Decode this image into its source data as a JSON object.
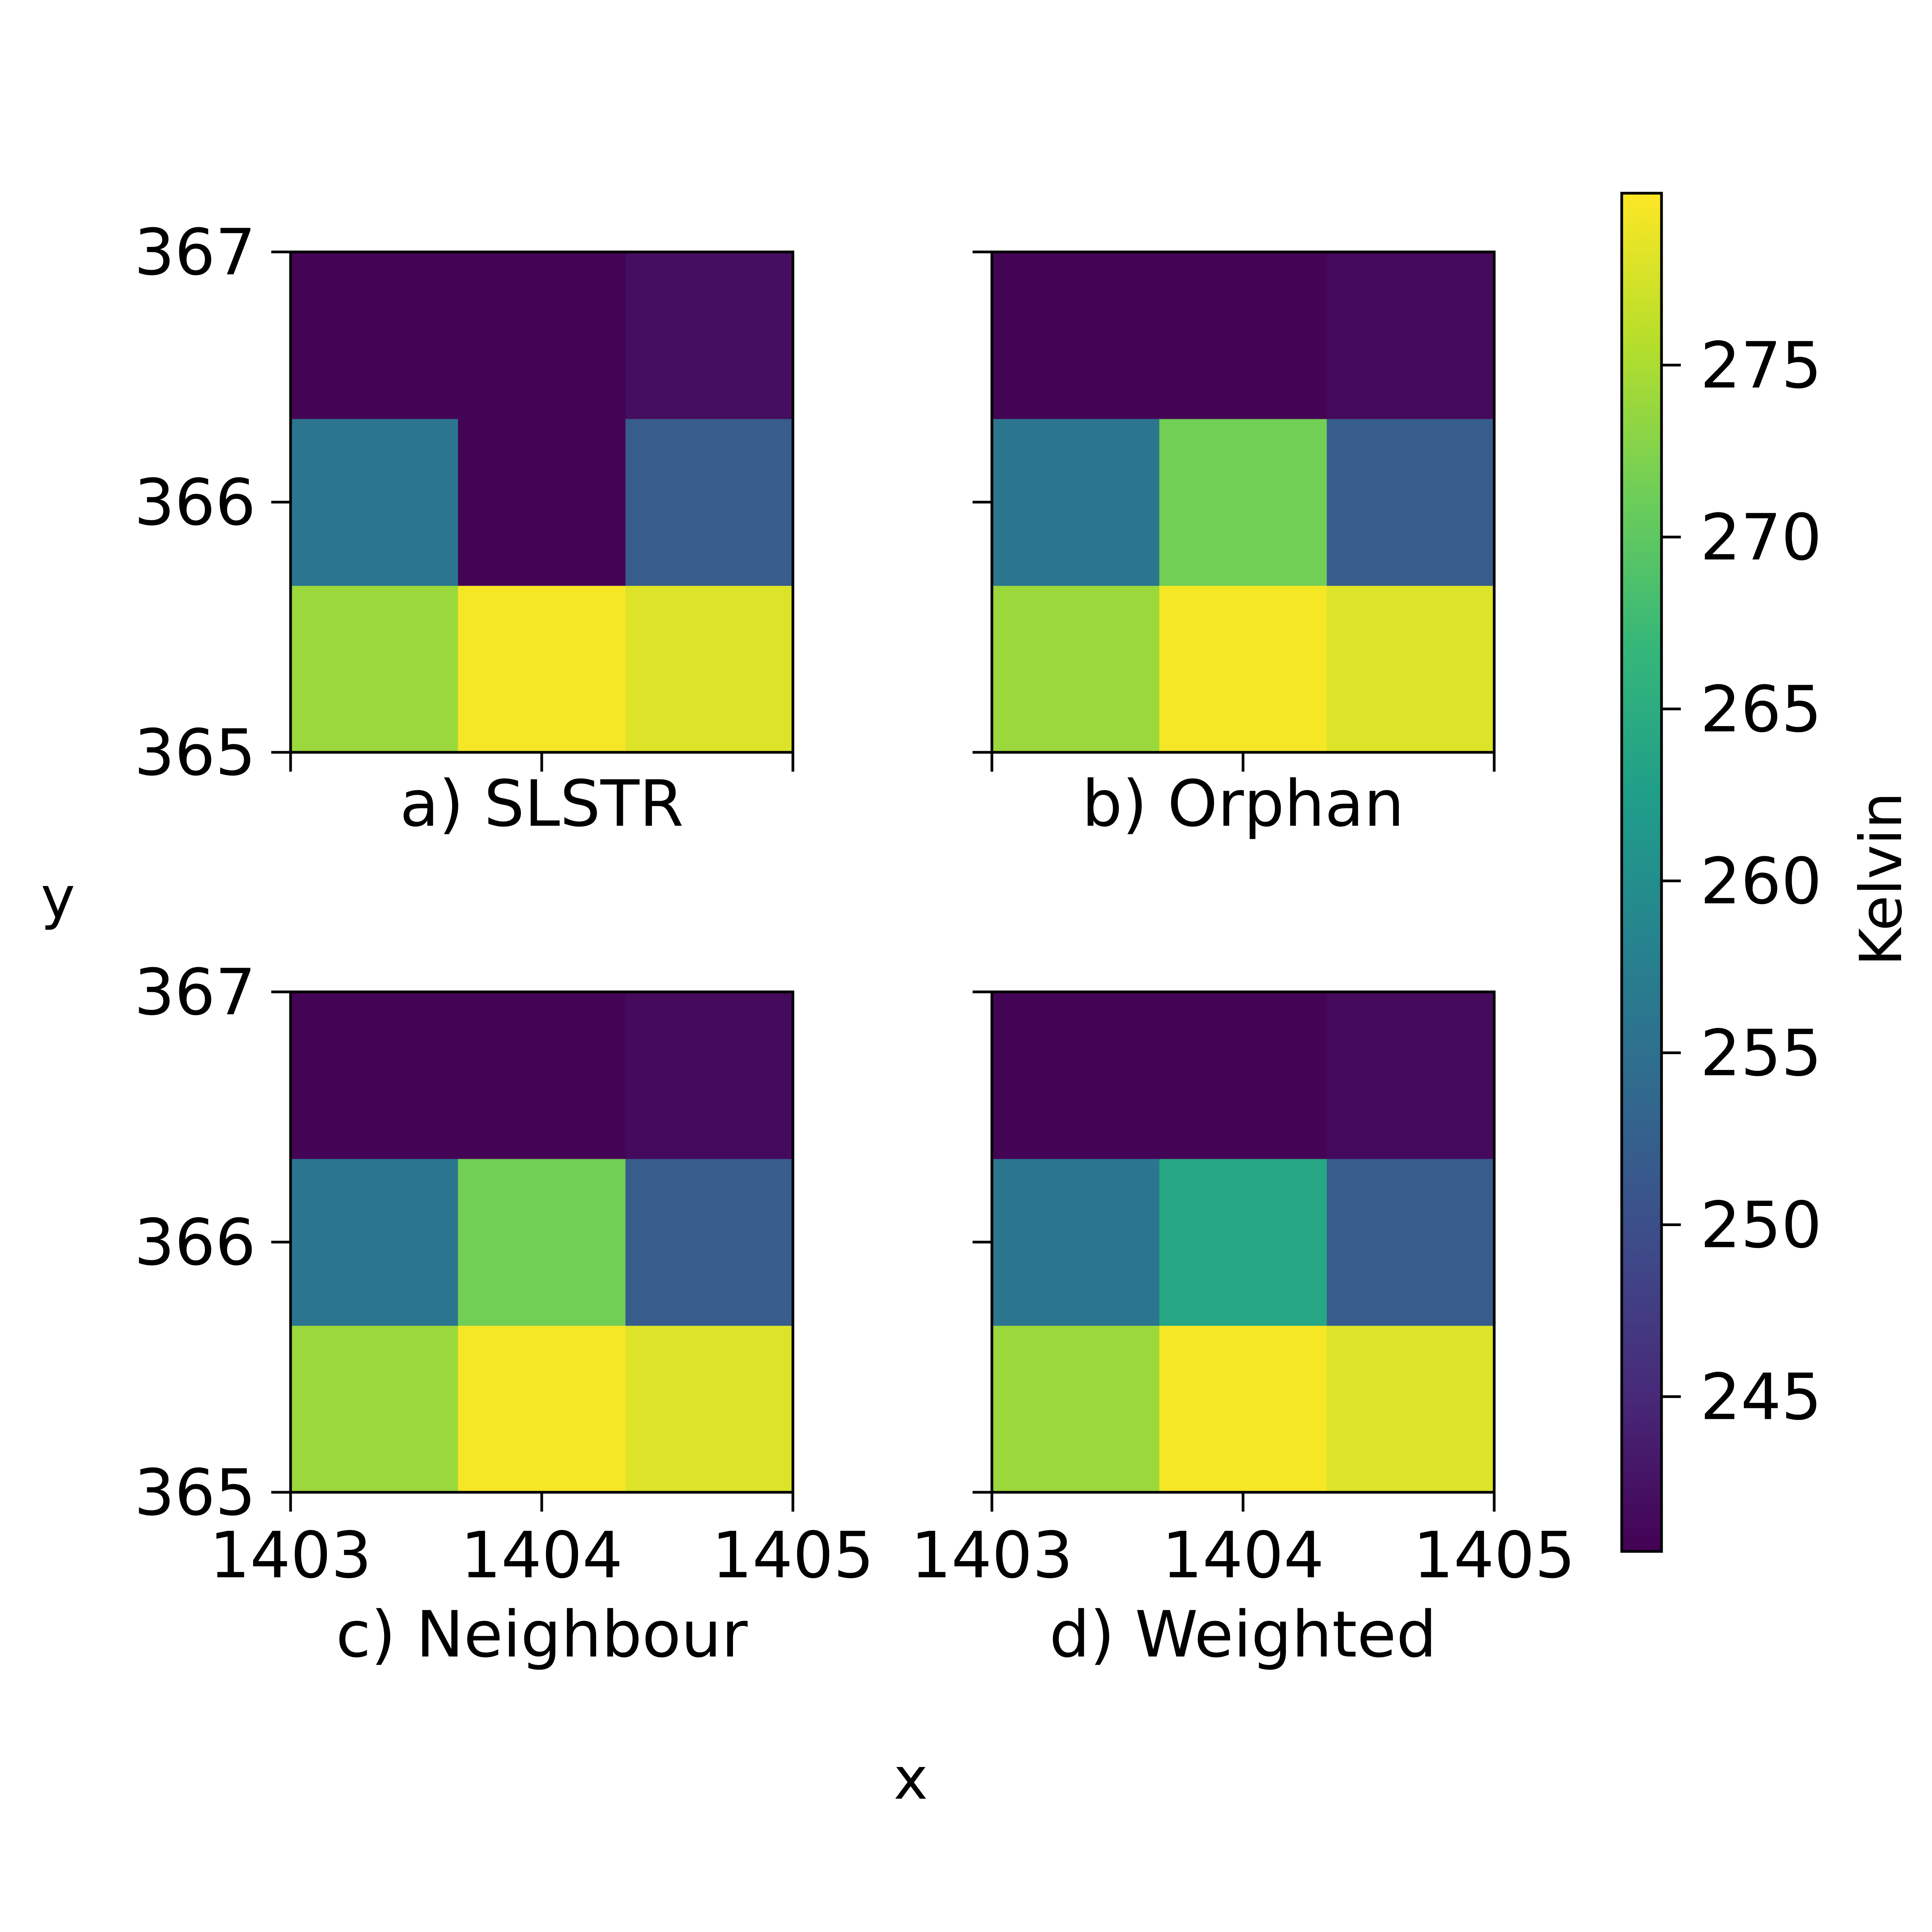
{
  "figure": {
    "xlabel": "x",
    "ylabel": "y"
  },
  "colorbar": {
    "label": "Kelvin",
    "min": 240.5,
    "max": 280.0,
    "ticks": [
      245,
      250,
      255,
      260,
      265,
      270,
      275
    ],
    "colormap": "viridis"
  },
  "chart_data": [
    {
      "type": "heatmap",
      "title": "a) SLSTR",
      "x": [
        1403,
        1404,
        1405
      ],
      "y": [
        365,
        366,
        367
      ],
      "xlim": [
        1403,
        1405
      ],
      "ylim": [
        365,
        367
      ],
      "x_ticks": [
        1403,
        1404,
        1405
      ],
      "y_ticks": [
        365,
        366,
        367
      ],
      "show_x_ticklabels": false,
      "show_y_ticklabels": true,
      "values": [
        [
          274.0,
          279.5,
          278.0
        ],
        [
          256.0,
          240.8,
          252.0
        ],
        [
          240.8,
          240.8,
          242.0
        ]
      ]
    },
    {
      "type": "heatmap",
      "title": "b) Orphan",
      "x": [
        1403,
        1404,
        1405
      ],
      "y": [
        365,
        366,
        367
      ],
      "xlim": [
        1403,
        1405
      ],
      "ylim": [
        365,
        367
      ],
      "x_ticks": [
        1403,
        1404,
        1405
      ],
      "y_ticks": [
        365,
        366,
        367
      ],
      "show_x_ticklabels": false,
      "show_y_ticklabels": false,
      "values": [
        [
          274.0,
          279.5,
          278.0
        ],
        [
          256.0,
          271.5,
          252.0
        ],
        [
          240.8,
          240.8,
          241.5
        ]
      ]
    },
    {
      "type": "heatmap",
      "title": "c) Neighbour",
      "x": [
        1403,
        1404,
        1405
      ],
      "y": [
        365,
        366,
        367
      ],
      "xlim": [
        1403,
        1405
      ],
      "ylim": [
        365,
        367
      ],
      "x_ticks": [
        1403,
        1404,
        1405
      ],
      "y_ticks": [
        365,
        366,
        367
      ],
      "show_x_ticklabels": true,
      "show_y_ticklabels": true,
      "values": [
        [
          274.0,
          279.5,
          278.0
        ],
        [
          256.0,
          271.5,
          252.0
        ],
        [
          240.8,
          240.8,
          241.5
        ]
      ]
    },
    {
      "type": "heatmap",
      "title": "d) Weighted",
      "x": [
        1403,
        1404,
        1405
      ],
      "y": [
        365,
        366,
        367
      ],
      "xlim": [
        1403,
        1405
      ],
      "ylim": [
        365,
        367
      ],
      "x_ticks": [
        1403,
        1404,
        1405
      ],
      "y_ticks": [
        365,
        366,
        367
      ],
      "show_x_ticklabels": true,
      "show_y_ticklabels": false,
      "values": [
        [
          274.0,
          279.5,
          278.0
        ],
        [
          256.0,
          264.0,
          252.0
        ],
        [
          240.8,
          240.8,
          241.5
        ]
      ]
    }
  ]
}
